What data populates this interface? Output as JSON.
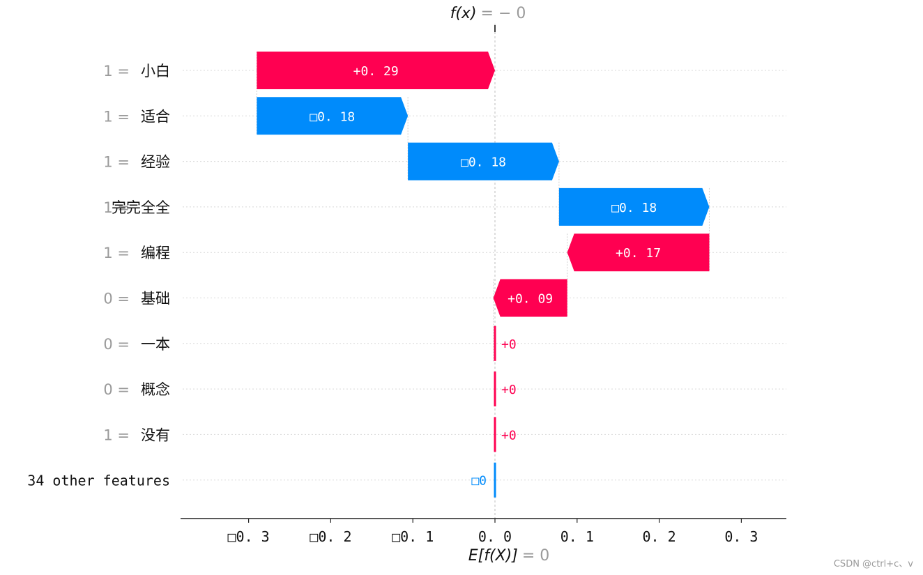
{
  "chart_data": {
    "type": "waterfall",
    "fx_label": "f(x)",
    "fx_value": "= − 0",
    "ex_label": "E[f(X)]",
    "ex_value": "= 0",
    "ylim": [
      -0.3,
      0.3
    ],
    "xlim_label_ticks": [
      "□0. 3",
      "□0. 2",
      "□0. 1",
      "0. 0",
      "0. 1",
      "0. 2",
      "0. 3"
    ],
    "tick_values": [
      -0.3,
      -0.2,
      -0.1,
      0.0,
      0.1,
      0.2,
      0.3
    ],
    "features": [
      {
        "value": "1 =",
        "name": "小白",
        "start": 0.0,
        "end": -0.29,
        "label": "+0. 29",
        "sign": "pos"
      },
      {
        "value": "1 =",
        "name": "适合",
        "start": -0.29,
        "end": -0.106,
        "label": "□0. 18",
        "sign": "neg"
      },
      {
        "value": "1 =",
        "name": "经验",
        "start": -0.106,
        "end": 0.078,
        "label": "□0. 18",
        "sign": "neg"
      },
      {
        "value": "1 =",
        "name": "完完全全",
        "start": 0.078,
        "end": 0.261,
        "label": "□0. 18",
        "sign": "neg"
      },
      {
        "value": "1 =",
        "name": "编程",
        "start": 0.261,
        "end": 0.088,
        "label": "+0. 17",
        "sign": "pos"
      },
      {
        "value": "0 =",
        "name": "基础",
        "start": 0.088,
        "end": -0.002,
        "label": "+0. 09",
        "sign": "pos"
      },
      {
        "value": "0 =",
        "name": "一本",
        "start": 0.0,
        "end": 0.0,
        "label": "+0",
        "sign": "pos"
      },
      {
        "value": "0 =",
        "name": "概念",
        "start": 0.0,
        "end": 0.0,
        "label": "+0",
        "sign": "pos"
      },
      {
        "value": "1 =",
        "name": "没有",
        "start": 0.0,
        "end": 0.0,
        "label": "+0",
        "sign": "pos"
      },
      {
        "value": "",
        "name": "34 other features",
        "start": 0.0,
        "end": 0.0,
        "label": "□0",
        "sign": "neg"
      }
    ],
    "colors": {
      "pos": "#ff0051",
      "neg": "#008bfb"
    }
  },
  "watermark": "CSDN @ctrl+c、v"
}
